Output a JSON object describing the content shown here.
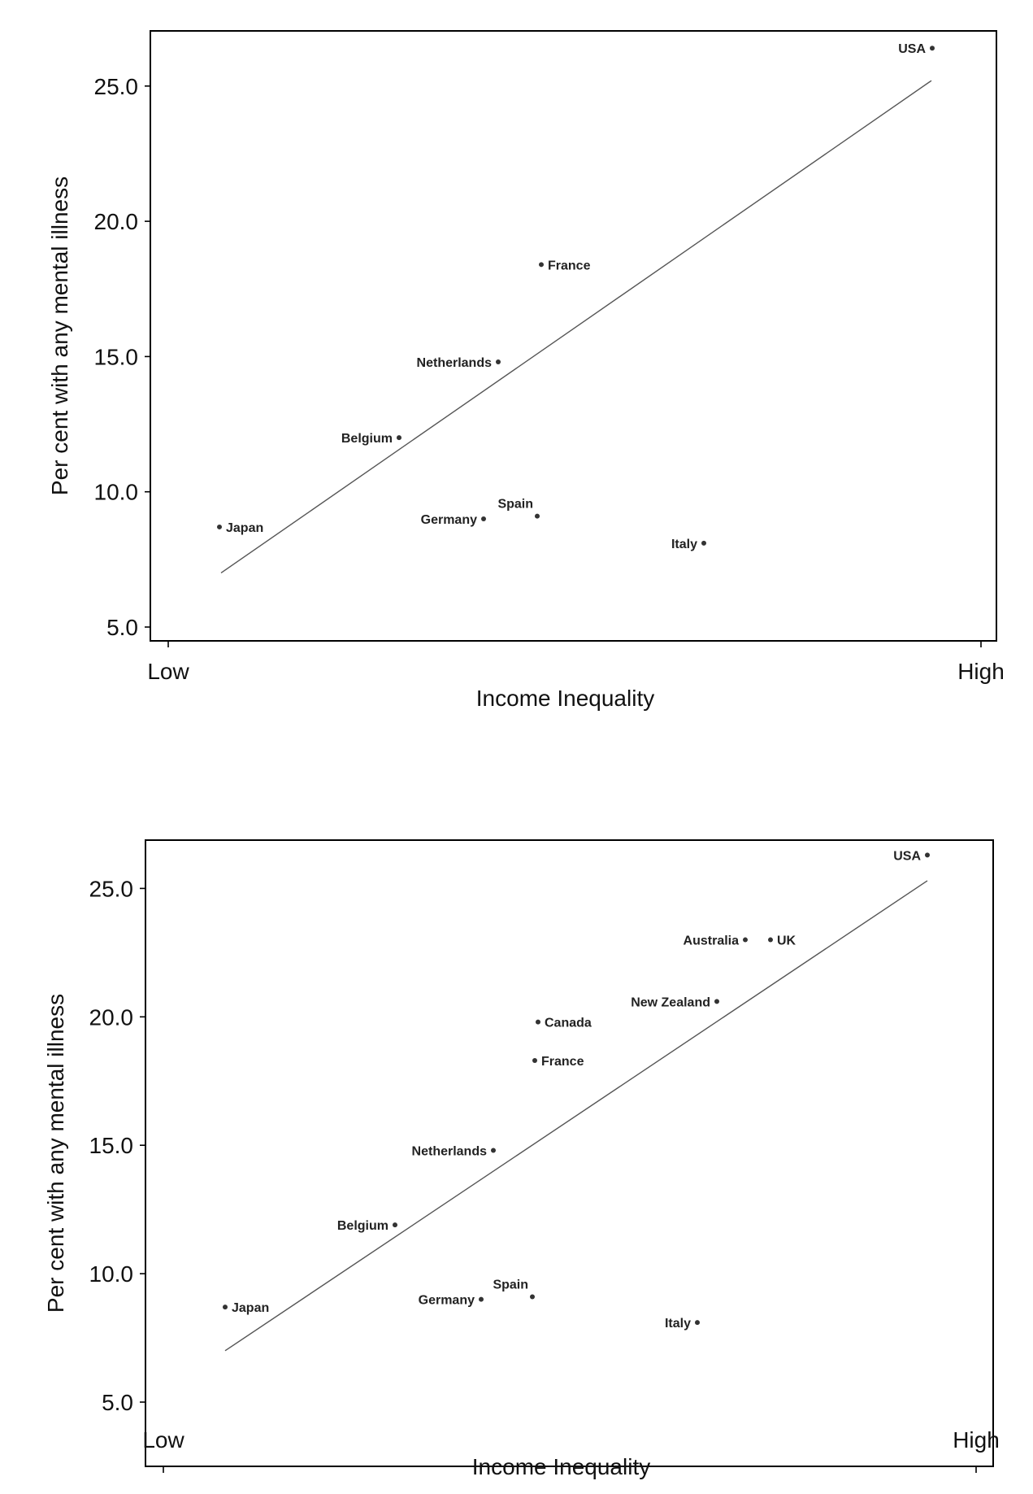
{
  "chart_data": [
    {
      "type": "scatter",
      "title": "",
      "xlabel": "Income Inequality",
      "ylabel": "Per cent with any mental illness",
      "x_tick_labels": {
        "low": "Low",
        "high": "High"
      },
      "xlim": [
        0,
        100
      ],
      "ylim": [
        4.5,
        27
      ],
      "yticks": [
        5.0,
        10.0,
        15.0,
        20.0,
        25.0
      ],
      "ytick_labels": [
        "5.0",
        "10.0",
        "15.0",
        "20.0",
        "25.0"
      ],
      "grid": false,
      "legend": "none",
      "points": [
        {
          "label": "USA",
          "x": 94,
          "y": 26.4,
          "label_side": "left"
        },
        {
          "label": "France",
          "x": 45.9,
          "y": 18.4,
          "label_side": "right"
        },
        {
          "label": "Netherlands",
          "x": 40.6,
          "y": 14.8,
          "label_side": "left"
        },
        {
          "label": "Belgium",
          "x": 28.4,
          "y": 12.0,
          "label_side": "left"
        },
        {
          "label": "Japan",
          "x": 6.3,
          "y": 8.7,
          "label_side": "right"
        },
        {
          "label": "Germany",
          "x": 38.8,
          "y": 9.0,
          "label_side": "left"
        },
        {
          "label": "Spain",
          "x": 45.4,
          "y": 9.1,
          "label_side": "above-left"
        },
        {
          "label": "Italy",
          "x": 65.9,
          "y": 8.1,
          "label_side": "left"
        }
      ],
      "trend_line": {
        "x": [
          6.5,
          93.9
        ],
        "y": [
          7.0,
          25.2
        ]
      }
    },
    {
      "type": "scatter",
      "title": "",
      "xlabel": "Income Inequality",
      "ylabel": "Per cent with any mental illness",
      "x_tick_labels": {
        "low": "Low",
        "high": "High"
      },
      "xlim": [
        0,
        100
      ],
      "ylim": [
        4.5,
        27
      ],
      "yticks": [
        5.0,
        10.0,
        15.0,
        20.0,
        25.0
      ],
      "ytick_labels": [
        "5.0",
        "10.0",
        "15.0",
        "20.0",
        "25.0"
      ],
      "grid": false,
      "legend": "none",
      "points": [
        {
          "label": "USA",
          "x": 94,
          "y": 26.3,
          "label_side": "left"
        },
        {
          "label": "Australia",
          "x": 71.6,
          "y": 23.0,
          "label_side": "left"
        },
        {
          "label": "UK",
          "x": 74.7,
          "y": 23.0,
          "label_side": "right"
        },
        {
          "label": "New Zealand",
          "x": 68.1,
          "y": 20.6,
          "label_side": "left"
        },
        {
          "label": "Canada",
          "x": 46.1,
          "y": 19.8,
          "label_side": "right"
        },
        {
          "label": "France",
          "x": 45.7,
          "y": 18.3,
          "label_side": "right"
        },
        {
          "label": "Netherlands",
          "x": 40.6,
          "y": 14.8,
          "label_side": "left"
        },
        {
          "label": "Belgium",
          "x": 28.5,
          "y": 11.9,
          "label_side": "left"
        },
        {
          "label": "Japan",
          "x": 7.6,
          "y": 8.7,
          "label_side": "right"
        },
        {
          "label": "Germany",
          "x": 39.1,
          "y": 9.0,
          "label_side": "left"
        },
        {
          "label": "Spain",
          "x": 45.4,
          "y": 9.1,
          "label_side": "above-left"
        },
        {
          "label": "Italy",
          "x": 65.7,
          "y": 8.1,
          "label_side": "left"
        }
      ],
      "trend_line": {
        "x": [
          7.6,
          94.0
        ],
        "y": [
          7.0,
          25.3
        ]
      }
    }
  ]
}
